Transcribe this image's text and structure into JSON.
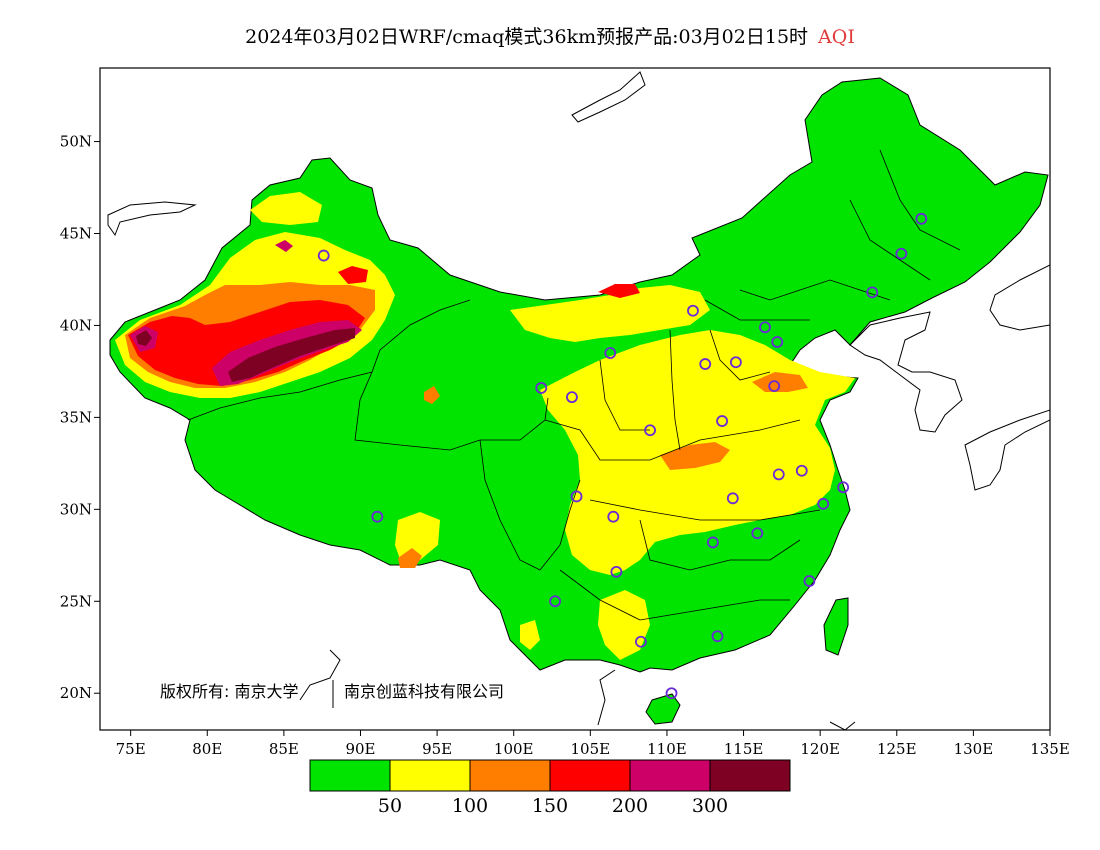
{
  "header": {
    "title": "2024年03月02日WRF/cmaq模式36km预报产品:03月02日15时",
    "variable": "AQI"
  },
  "map": {
    "lon_range": [
      73,
      135
    ],
    "lat_range": [
      18,
      54
    ],
    "lon_ticks": [
      "75E",
      "80E",
      "85E",
      "90E",
      "95E",
      "100E",
      "105E",
      "110E",
      "115E",
      "120E",
      "125E",
      "130E",
      "135E"
    ],
    "lon_values": [
      75,
      80,
      85,
      90,
      95,
      100,
      105,
      110,
      115,
      120,
      125,
      130,
      135
    ],
    "lat_ticks": [
      "20N",
      "25N",
      "30N",
      "35N",
      "40N",
      "45N",
      "50N"
    ],
    "lat_values": [
      20,
      25,
      30,
      35,
      40,
      45,
      50
    ],
    "copyright": "版权所有: 南京大学",
    "copyright2": "南京创蓝科技有限公司",
    "stations": [
      [
        87.6,
        43.8
      ],
      [
        101.8,
        36.6
      ],
      [
        103.8,
        36.1
      ],
      [
        106.3,
        38.5
      ],
      [
        111.7,
        40.8
      ],
      [
        112.5,
        37.9
      ],
      [
        114.5,
        38.0
      ],
      [
        116.4,
        39.9
      ],
      [
        117.2,
        39.1
      ],
      [
        117.0,
        36.7
      ],
      [
        113.6,
        34.8
      ],
      [
        108.9,
        34.3
      ],
      [
        104.1,
        30.7
      ],
      [
        106.5,
        29.6
      ],
      [
        114.3,
        30.6
      ],
      [
        117.3,
        31.9
      ],
      [
        118.8,
        32.1
      ],
      [
        120.2,
        30.3
      ],
      [
        121.5,
        31.2
      ],
      [
        115.9,
        28.7
      ],
      [
        113.0,
        28.2
      ],
      [
        106.7,
        26.6
      ],
      [
        102.7,
        25.0
      ],
      [
        108.3,
        22.8
      ],
      [
        113.3,
        23.1
      ],
      [
        119.3,
        26.1
      ],
      [
        110.3,
        20.0
      ],
      [
        91.1,
        29.6
      ],
      [
        123.4,
        41.8
      ],
      [
        125.3,
        43.9
      ],
      [
        126.6,
        45.8
      ]
    ]
  },
  "legend": {
    "colors": [
      "#00e400",
      "#ffff00",
      "#ff7e00",
      "#ff0000",
      "#cc0066",
      "#7e0023"
    ],
    "labels": [
      "50",
      "100",
      "150",
      "200",
      "300"
    ]
  }
}
